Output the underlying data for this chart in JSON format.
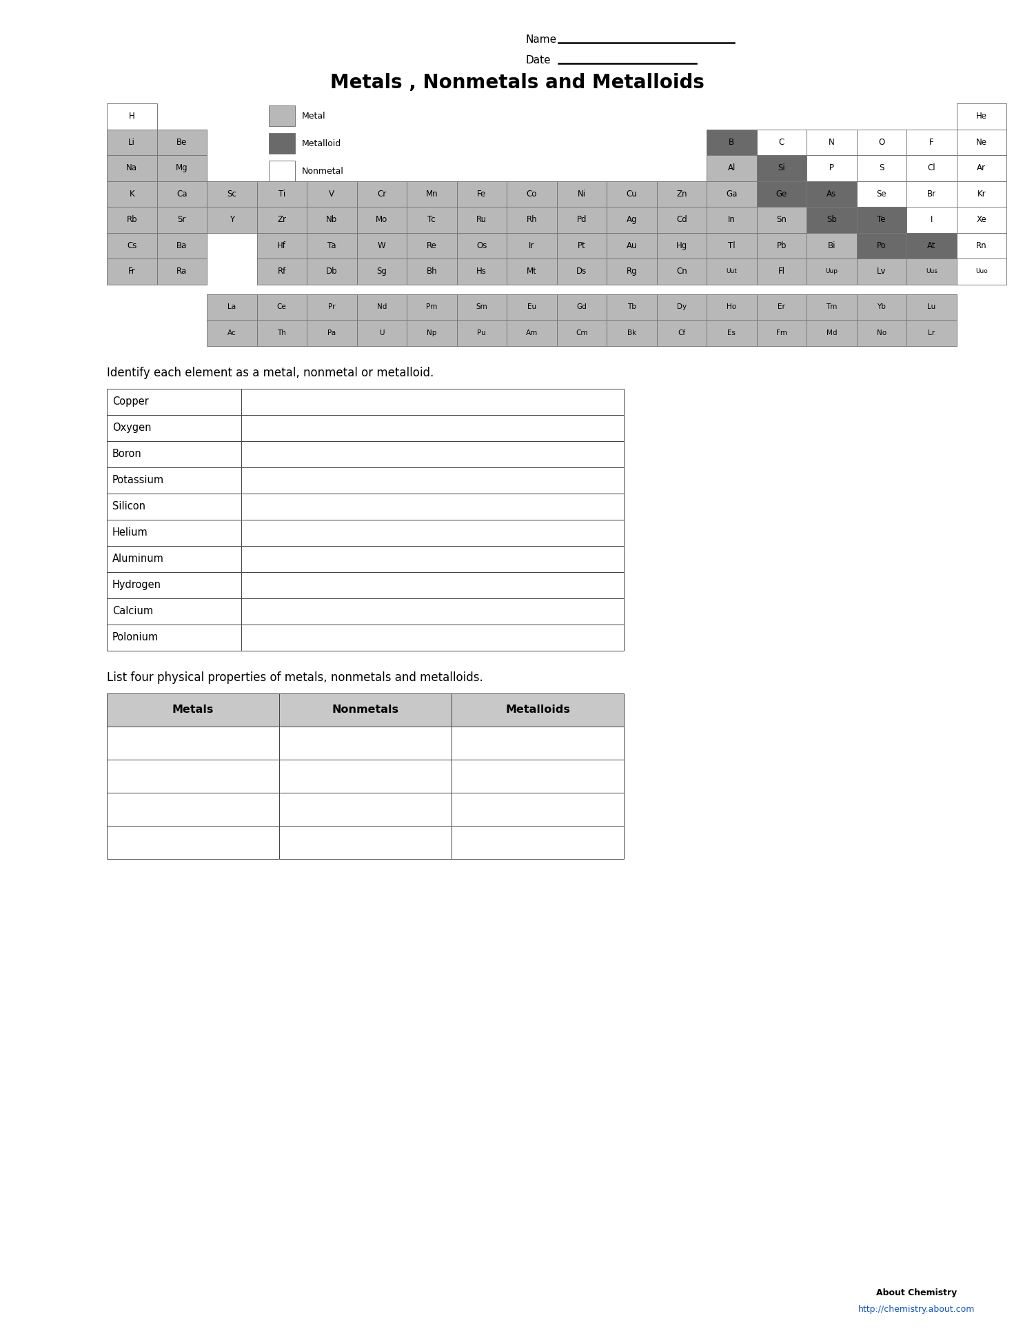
{
  "title": "Metals , Nonmetals and Metalloids",
  "bg_color": "#ffffff",
  "metal_color": "#b8b8b8",
  "metalloid_color": "#6a6a6a",
  "nonmetal_color": "#ffffff",
  "periodic_table": {
    "rows": [
      {
        "row": 1,
        "cells": [
          {
            "symbol": "H",
            "col": 1,
            "type": "nonmetal"
          },
          {
            "symbol": "He",
            "col": 18,
            "type": "nonmetal"
          }
        ]
      },
      {
        "row": 2,
        "cells": [
          {
            "symbol": "Li",
            "col": 1,
            "type": "metal"
          },
          {
            "symbol": "Be",
            "col": 2,
            "type": "metal"
          },
          {
            "symbol": "B",
            "col": 13,
            "type": "metalloid"
          },
          {
            "symbol": "C",
            "col": 14,
            "type": "nonmetal"
          },
          {
            "symbol": "N",
            "col": 15,
            "type": "nonmetal"
          },
          {
            "symbol": "O",
            "col": 16,
            "type": "nonmetal"
          },
          {
            "symbol": "F",
            "col": 17,
            "type": "nonmetal"
          },
          {
            "symbol": "Ne",
            "col": 18,
            "type": "nonmetal"
          }
        ]
      },
      {
        "row": 3,
        "cells": [
          {
            "symbol": "Na",
            "col": 1,
            "type": "metal"
          },
          {
            "symbol": "Mg",
            "col": 2,
            "type": "metal"
          },
          {
            "symbol": "Al",
            "col": 13,
            "type": "metal"
          },
          {
            "symbol": "Si",
            "col": 14,
            "type": "metalloid"
          },
          {
            "symbol": "P",
            "col": 15,
            "type": "nonmetal"
          },
          {
            "symbol": "S",
            "col": 16,
            "type": "nonmetal"
          },
          {
            "symbol": "Cl",
            "col": 17,
            "type": "nonmetal"
          },
          {
            "symbol": "Ar",
            "col": 18,
            "type": "nonmetal"
          }
        ]
      },
      {
        "row": 4,
        "cells": [
          {
            "symbol": "K",
            "col": 1,
            "type": "metal"
          },
          {
            "symbol": "Ca",
            "col": 2,
            "type": "metal"
          },
          {
            "symbol": "Sc",
            "col": 3,
            "type": "metal"
          },
          {
            "symbol": "Ti",
            "col": 4,
            "type": "metal"
          },
          {
            "symbol": "V",
            "col": 5,
            "type": "metal"
          },
          {
            "symbol": "Cr",
            "col": 6,
            "type": "metal"
          },
          {
            "symbol": "Mn",
            "col": 7,
            "type": "metal"
          },
          {
            "symbol": "Fe",
            "col": 8,
            "type": "metal"
          },
          {
            "symbol": "Co",
            "col": 9,
            "type": "metal"
          },
          {
            "symbol": "Ni",
            "col": 10,
            "type": "metal"
          },
          {
            "symbol": "Cu",
            "col": 11,
            "type": "metal"
          },
          {
            "symbol": "Zn",
            "col": 12,
            "type": "metal"
          },
          {
            "symbol": "Ga",
            "col": 13,
            "type": "metal"
          },
          {
            "symbol": "Ge",
            "col": 14,
            "type": "metalloid"
          },
          {
            "symbol": "As",
            "col": 15,
            "type": "metalloid"
          },
          {
            "symbol": "Se",
            "col": 16,
            "type": "nonmetal"
          },
          {
            "symbol": "Br",
            "col": 17,
            "type": "nonmetal"
          },
          {
            "symbol": "Kr",
            "col": 18,
            "type": "nonmetal"
          }
        ]
      },
      {
        "row": 5,
        "cells": [
          {
            "symbol": "Rb",
            "col": 1,
            "type": "metal"
          },
          {
            "symbol": "Sr",
            "col": 2,
            "type": "metal"
          },
          {
            "symbol": "Y",
            "col": 3,
            "type": "metal"
          },
          {
            "symbol": "Zr",
            "col": 4,
            "type": "metal"
          },
          {
            "symbol": "Nb",
            "col": 5,
            "type": "metal"
          },
          {
            "symbol": "Mo",
            "col": 6,
            "type": "metal"
          },
          {
            "symbol": "Tc",
            "col": 7,
            "type": "metal"
          },
          {
            "symbol": "Ru",
            "col": 8,
            "type": "metal"
          },
          {
            "symbol": "Rh",
            "col": 9,
            "type": "metal"
          },
          {
            "symbol": "Pd",
            "col": 10,
            "type": "metal"
          },
          {
            "symbol": "Ag",
            "col": 11,
            "type": "metal"
          },
          {
            "symbol": "Cd",
            "col": 12,
            "type": "metal"
          },
          {
            "symbol": "In",
            "col": 13,
            "type": "metal"
          },
          {
            "symbol": "Sn",
            "col": 14,
            "type": "metal"
          },
          {
            "symbol": "Sb",
            "col": 15,
            "type": "metalloid"
          },
          {
            "symbol": "Te",
            "col": 16,
            "type": "metalloid"
          },
          {
            "symbol": "I",
            "col": 17,
            "type": "nonmetal"
          },
          {
            "symbol": "Xe",
            "col": 18,
            "type": "nonmetal"
          }
        ]
      },
      {
        "row": 6,
        "cells": [
          {
            "symbol": "Cs",
            "col": 1,
            "type": "metal"
          },
          {
            "symbol": "Ba",
            "col": 2,
            "type": "metal"
          },
          {
            "symbol": "Hf",
            "col": 4,
            "type": "metal"
          },
          {
            "symbol": "Ta",
            "col": 5,
            "type": "metal"
          },
          {
            "symbol": "W",
            "col": 6,
            "type": "metal"
          },
          {
            "symbol": "Re",
            "col": 7,
            "type": "metal"
          },
          {
            "symbol": "Os",
            "col": 8,
            "type": "metal"
          },
          {
            "symbol": "Ir",
            "col": 9,
            "type": "metal"
          },
          {
            "symbol": "Pt",
            "col": 10,
            "type": "metal"
          },
          {
            "symbol": "Au",
            "col": 11,
            "type": "metal"
          },
          {
            "symbol": "Hg",
            "col": 12,
            "type": "metal"
          },
          {
            "symbol": "Tl",
            "col": 13,
            "type": "metal"
          },
          {
            "symbol": "Pb",
            "col": 14,
            "type": "metal"
          },
          {
            "symbol": "Bi",
            "col": 15,
            "type": "metal"
          },
          {
            "symbol": "Po",
            "col": 16,
            "type": "metalloid"
          },
          {
            "symbol": "At",
            "col": 17,
            "type": "metalloid"
          },
          {
            "symbol": "Rn",
            "col": 18,
            "type": "nonmetal"
          }
        ]
      },
      {
        "row": 7,
        "cells": [
          {
            "symbol": "Fr",
            "col": 1,
            "type": "metal"
          },
          {
            "symbol": "Ra",
            "col": 2,
            "type": "metal"
          },
          {
            "symbol": "Rf",
            "col": 4,
            "type": "metal"
          },
          {
            "symbol": "Db",
            "col": 5,
            "type": "metal"
          },
          {
            "symbol": "Sg",
            "col": 6,
            "type": "metal"
          },
          {
            "symbol": "Bh",
            "col": 7,
            "type": "metal"
          },
          {
            "symbol": "Hs",
            "col": 8,
            "type": "metal"
          },
          {
            "symbol": "Mt",
            "col": 9,
            "type": "metal"
          },
          {
            "symbol": "Ds",
            "col": 10,
            "type": "metal"
          },
          {
            "symbol": "Rg",
            "col": 11,
            "type": "metal"
          },
          {
            "symbol": "Cn",
            "col": 12,
            "type": "metal"
          },
          {
            "symbol": "Uut",
            "col": 13,
            "type": "metal"
          },
          {
            "symbol": "Fl",
            "col": 14,
            "type": "metal"
          },
          {
            "symbol": "Uup",
            "col": 15,
            "type": "metal"
          },
          {
            "symbol": "Lv",
            "col": 16,
            "type": "metal"
          },
          {
            "symbol": "Uus",
            "col": 17,
            "type": "metal"
          },
          {
            "symbol": "Uuo",
            "col": 18,
            "type": "nonmetal"
          }
        ]
      }
    ],
    "lanthanides": [
      "La",
      "Ce",
      "Pr",
      "Nd",
      "Pm",
      "Sm",
      "Eu",
      "Gd",
      "Tb",
      "Dy",
      "Ho",
      "Er",
      "Tm",
      "Yb",
      "Lu"
    ],
    "actinides": [
      "Ac",
      "Th",
      "Pa",
      "U",
      "Np",
      "Pu",
      "Am",
      "Cm",
      "Bk",
      "Cf",
      "Es",
      "Fm",
      "Md",
      "No",
      "Lr"
    ]
  },
  "elements_list": [
    "Copper",
    "Oxygen",
    "Boron",
    "Potassium",
    "Silicon",
    "Helium",
    "Aluminum",
    "Hydrogen",
    "Calcium",
    "Polonium"
  ],
  "properties_headers": [
    "Metals",
    "Nonmetals",
    "Metalloids"
  ],
  "properties_rows": 4,
  "footer_text": "About Chemistry",
  "footer_url": "http://chemistry.about.com",
  "identify_text": "Identify each element as a metal, nonmetal or metalloid.",
  "list_text": "List four physical properties of metals, nonmetals and metalloids."
}
